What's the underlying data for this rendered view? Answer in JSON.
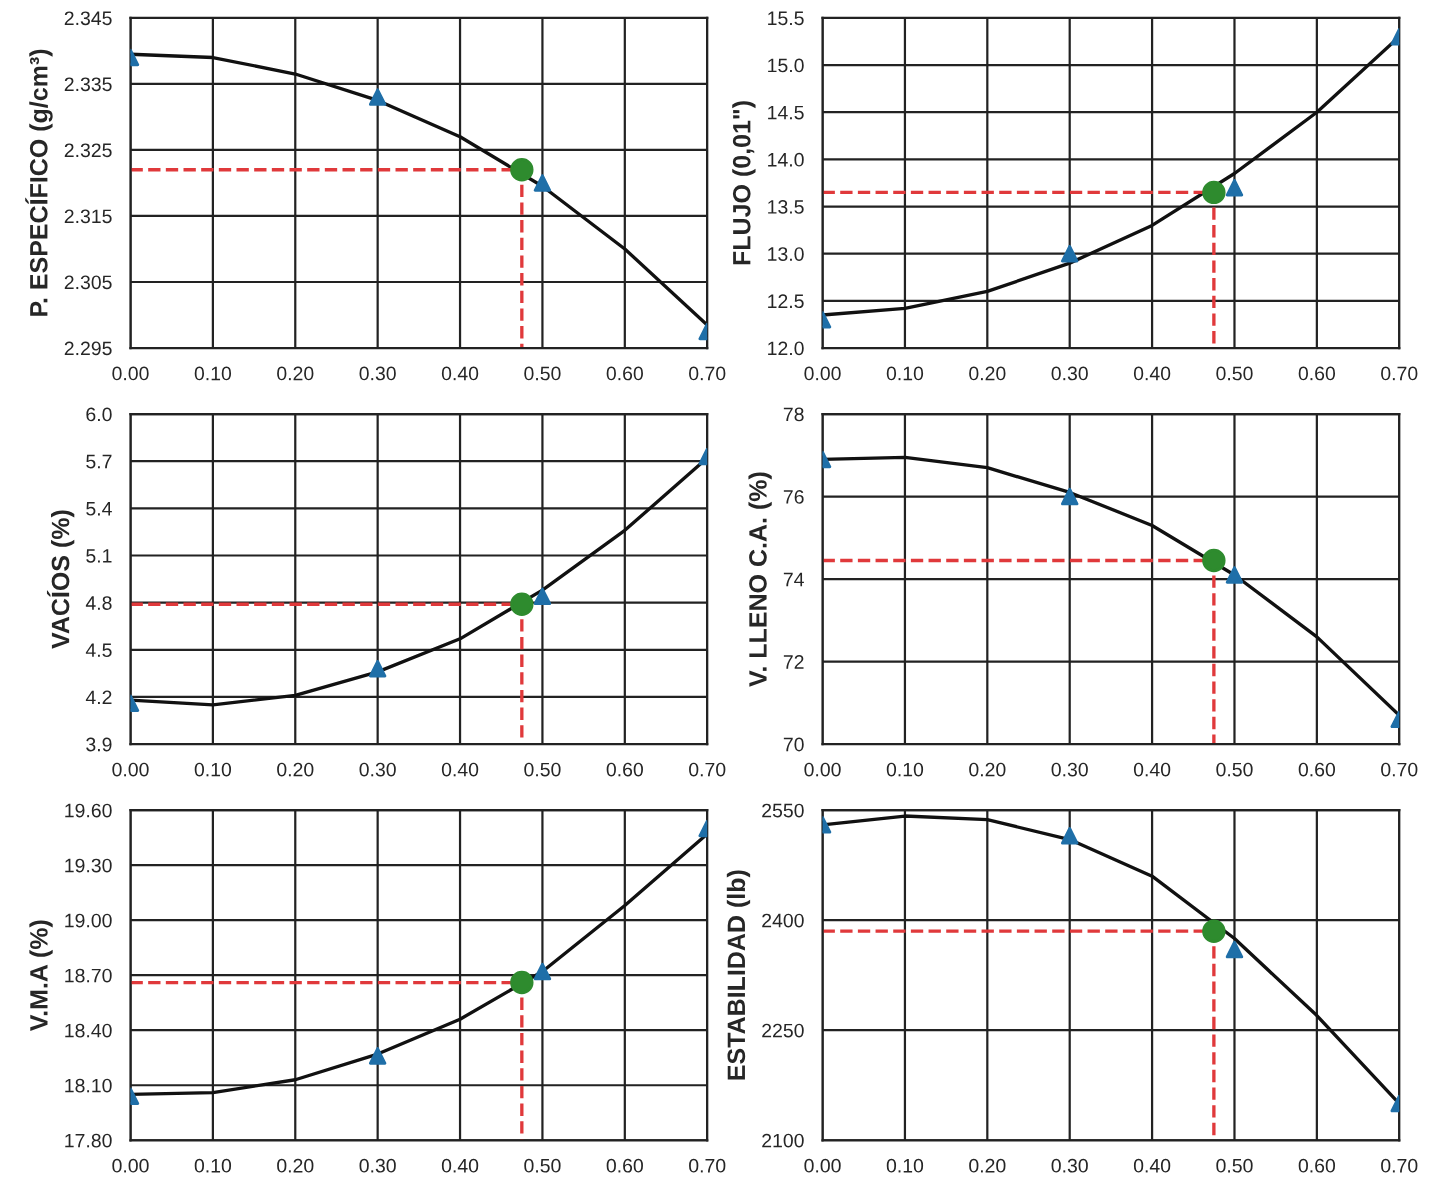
{
  "chart_data": [
    {
      "type": "line",
      "ylabel": "P. ESPECÍFICO (g/cm³)",
      "xlim": [
        0,
        0.7
      ],
      "xticks": [
        {
          "value": 0,
          "label": "0.00"
        },
        {
          "value": 0.1,
          "label": "0.10"
        },
        {
          "value": 0.2,
          "label": "0.20"
        },
        {
          "value": 0.3,
          "label": "0.30"
        },
        {
          "value": 0.4,
          "label": "0.40"
        },
        {
          "value": 0.5,
          "label": "0.50"
        },
        {
          "value": 0.6,
          "label": "0.60"
        },
        {
          "value": 0.7,
          "label": "0.70"
        }
      ],
      "ylim": [
        2.295,
        2.345
      ],
      "yticks": [
        {
          "value": 2.295,
          "label": "2.295"
        },
        {
          "value": 2.305,
          "label": "2.305"
        },
        {
          "value": 2.315,
          "label": "2.315"
        },
        {
          "value": 2.325,
          "label": "2.325"
        },
        {
          "value": 2.335,
          "label": "2.335"
        },
        {
          "value": 2.345,
          "label": "2.345"
        }
      ],
      "grid": true,
      "legend": false,
      "series": [
        {
          "type": "line",
          "color": "#111111",
          "marker": "none",
          "line_style": "solid",
          "x": [
            0,
            0.1,
            0.2,
            0.3,
            0.4,
            0.5,
            0.6,
            0.7
          ],
          "values": [
            2.3395,
            2.339,
            2.3365,
            2.3325,
            2.327,
            2.3195,
            2.31,
            2.2985
          ]
        },
        {
          "type": "scatter",
          "color": "#1f6fa8",
          "marker": "triangle",
          "x": [
            0,
            0.3,
            0.5,
            0.7
          ],
          "values": [
            2.339,
            2.333,
            2.32,
            2.2975
          ]
        },
        {
          "type": "line",
          "color": "#e0393b",
          "marker": "none",
          "line_style": "dashed",
          "x": [
            0,
            0.475,
            0.475
          ],
          "values": [
            2.322,
            2.322,
            2.295
          ]
        },
        {
          "type": "scatter",
          "color": "#2e8b2e",
          "marker": "circle",
          "x": [
            0.475
          ],
          "values": [
            2.322
          ]
        }
      ]
    },
    {
      "type": "line",
      "ylabel": "FLUJO (0,01\")",
      "xlim": [
        0,
        0.7
      ],
      "xticks": [
        {
          "value": 0,
          "label": "0.00"
        },
        {
          "value": 0.1,
          "label": "0.10"
        },
        {
          "value": 0.2,
          "label": "0.20"
        },
        {
          "value": 0.3,
          "label": "0.30"
        },
        {
          "value": 0.4,
          "label": "0.40"
        },
        {
          "value": 0.5,
          "label": "0.50"
        },
        {
          "value": 0.6,
          "label": "0.60"
        },
        {
          "value": 0.7,
          "label": "0.70"
        }
      ],
      "ylim": [
        12.0,
        15.5
      ],
      "yticks": [
        {
          "value": 12.0,
          "label": "12.0"
        },
        {
          "value": 12.5,
          "label": "12.5"
        },
        {
          "value": 13.0,
          "label": "13.0"
        },
        {
          "value": 13.5,
          "label": "13.5"
        },
        {
          "value": 14.0,
          "label": "14.0"
        },
        {
          "value": 14.5,
          "label": "14.5"
        },
        {
          "value": 15.0,
          "label": "15.0"
        },
        {
          "value": 15.5,
          "label": "15.5"
        }
      ],
      "grid": true,
      "legend": false,
      "series": [
        {
          "type": "line",
          "color": "#111111",
          "marker": "none",
          "line_style": "solid",
          "x": [
            0,
            0.1,
            0.2,
            0.3,
            0.4,
            0.5,
            0.6,
            0.7
          ],
          "values": [
            12.35,
            12.42,
            12.6,
            12.9,
            13.3,
            13.85,
            14.5,
            15.3
          ]
        },
        {
          "type": "scatter",
          "color": "#1f6fa8",
          "marker": "triangle",
          "x": [
            0,
            0.3,
            0.5,
            0.7
          ],
          "values": [
            12.3,
            13.0,
            13.7,
            15.3
          ]
        },
        {
          "type": "line",
          "color": "#e0393b",
          "marker": "none",
          "line_style": "dashed",
          "x": [
            0,
            0.475,
            0.475
          ],
          "values": [
            13.65,
            13.65,
            12.0
          ]
        },
        {
          "type": "scatter",
          "color": "#2e8b2e",
          "marker": "circle",
          "x": [
            0.475
          ],
          "values": [
            13.65
          ]
        }
      ]
    },
    {
      "type": "line",
      "ylabel": "VACÍOS (%)",
      "xlim": [
        0,
        0.7
      ],
      "xticks": [
        {
          "value": 0,
          "label": "0.00"
        },
        {
          "value": 0.1,
          "label": "0.10"
        },
        {
          "value": 0.2,
          "label": "0.20"
        },
        {
          "value": 0.3,
          "label": "0.30"
        },
        {
          "value": 0.4,
          "label": "0.40"
        },
        {
          "value": 0.5,
          "label": "0.50"
        },
        {
          "value": 0.6,
          "label": "0.60"
        },
        {
          "value": 0.7,
          "label": "0.70"
        }
      ],
      "ylim": [
        3.9,
        6.0
      ],
      "yticks": [
        3.9,
        4.2,
        4.5,
        4.8,
        5.1,
        5.4,
        5.7,
        {
          "value": 6.0,
          "label": "6.0"
        }
      ],
      "grid": true,
      "legend": false,
      "series": [
        {
          "type": "line",
          "color": "#111111",
          "marker": "none",
          "line_style": "solid",
          "x": [
            0,
            0.1,
            0.2,
            0.3,
            0.4,
            0.5,
            0.6,
            0.7
          ],
          "values": [
            4.18,
            4.15,
            4.21,
            4.36,
            4.57,
            4.88,
            5.26,
            5.72
          ]
        },
        {
          "type": "scatter",
          "color": "#1f6fa8",
          "marker": "triangle",
          "x": [
            0,
            0.3,
            0.5,
            0.7
          ],
          "values": [
            4.16,
            4.38,
            4.84,
            5.73
          ]
        },
        {
          "type": "line",
          "color": "#e0393b",
          "marker": "none",
          "line_style": "dashed",
          "x": [
            0,
            0.475,
            0.475
          ],
          "values": [
            4.79,
            4.79,
            3.9
          ]
        },
        {
          "type": "scatter",
          "color": "#2e8b2e",
          "marker": "circle",
          "x": [
            0.475
          ],
          "values": [
            4.79
          ]
        }
      ]
    },
    {
      "type": "line",
      "ylabel": "V. LLENO C.A. (%)",
      "xlim": [
        0,
        0.7
      ],
      "xticks": [
        {
          "value": 0,
          "label": "0.00"
        },
        {
          "value": 0.1,
          "label": "0.10"
        },
        {
          "value": 0.2,
          "label": "0.20"
        },
        {
          "value": 0.3,
          "label": "0.30"
        },
        {
          "value": 0.4,
          "label": "0.40"
        },
        {
          "value": 0.5,
          "label": "0.50"
        },
        {
          "value": 0.6,
          "label": "0.60"
        },
        {
          "value": 0.7,
          "label": "0.70"
        }
      ],
      "ylim": [
        70,
        78
      ],
      "yticks": [
        70,
        72,
        74,
        76,
        78
      ],
      "grid": true,
      "legend": false,
      "series": [
        {
          "type": "line",
          "color": "#111111",
          "marker": "none",
          "line_style": "solid",
          "x": [
            0,
            0.1,
            0.2,
            0.3,
            0.4,
            0.5,
            0.6,
            0.7
          ],
          "values": [
            76.9,
            76.95,
            76.7,
            76.1,
            75.3,
            74.1,
            72.6,
            70.7
          ]
        },
        {
          "type": "scatter",
          "color": "#1f6fa8",
          "marker": "triangle",
          "x": [
            0,
            0.3,
            0.5,
            0.7
          ],
          "values": [
            76.9,
            76.0,
            74.1,
            70.6
          ]
        },
        {
          "type": "line",
          "color": "#e0393b",
          "marker": "none",
          "line_style": "dashed",
          "x": [
            0,
            0.475,
            0.475
          ],
          "values": [
            74.45,
            74.45,
            70
          ]
        },
        {
          "type": "scatter",
          "color": "#2e8b2e",
          "marker": "circle",
          "x": [
            0.475
          ],
          "values": [
            74.45
          ]
        }
      ]
    },
    {
      "type": "line",
      "ylabel": "V.M.A (%)",
      "xlim": [
        0,
        0.7
      ],
      "xticks": [
        {
          "value": 0,
          "label": "0.00"
        },
        {
          "value": 0.1,
          "label": "0.10"
        },
        {
          "value": 0.2,
          "label": "0.20"
        },
        {
          "value": 0.3,
          "label": "0.30"
        },
        {
          "value": 0.4,
          "label": "0.40"
        },
        {
          "value": 0.5,
          "label": "0.50"
        },
        {
          "value": 0.6,
          "label": "0.60"
        },
        {
          "value": 0.7,
          "label": "0.70"
        }
      ],
      "ylim": [
        17.8,
        19.6
      ],
      "yticks": [
        {
          "value": 17.8,
          "label": "17.80"
        },
        {
          "value": 18.1,
          "label": "18.10"
        },
        {
          "value": 18.4,
          "label": "18.40"
        },
        {
          "value": 18.7,
          "label": "18.70"
        },
        {
          "value": 19.0,
          "label": "19.00"
        },
        {
          "value": 19.3,
          "label": "19.30"
        },
        {
          "value": 19.6,
          "label": "19.60"
        }
      ],
      "grid": true,
      "legend": false,
      "series": [
        {
          "type": "line",
          "color": "#111111",
          "marker": "none",
          "line_style": "solid",
          "x": [
            0,
            0.1,
            0.2,
            0.3,
            0.4,
            0.5,
            0.6,
            0.7
          ],
          "values": [
            18.05,
            18.06,
            18.13,
            18.27,
            18.46,
            18.72,
            19.08,
            19.47
          ]
        },
        {
          "type": "scatter",
          "color": "#1f6fa8",
          "marker": "triangle",
          "x": [
            0,
            0.3,
            0.5,
            0.7
          ],
          "values": [
            18.04,
            18.26,
            18.72,
            19.5
          ]
        },
        {
          "type": "line",
          "color": "#e0393b",
          "marker": "none",
          "line_style": "dashed",
          "x": [
            0,
            0.475,
            0.475
          ],
          "values": [
            18.66,
            18.66,
            17.8
          ]
        },
        {
          "type": "scatter",
          "color": "#2e8b2e",
          "marker": "circle",
          "x": [
            0.475
          ],
          "values": [
            18.66
          ]
        }
      ]
    },
    {
      "type": "line",
      "ylabel": "ESTABILIDAD (lb)",
      "xlim": [
        0,
        0.7
      ],
      "xticks": [
        {
          "value": 0,
          "label": "0.00"
        },
        {
          "value": 0.1,
          "label": "0.10"
        },
        {
          "value": 0.2,
          "label": "0.20"
        },
        {
          "value": 0.3,
          "label": "0.30"
        },
        {
          "value": 0.4,
          "label": "0.40"
        },
        {
          "value": 0.5,
          "label": "0.50"
        },
        {
          "value": 0.6,
          "label": "0.60"
        },
        {
          "value": 0.7,
          "label": "0.70"
        }
      ],
      "ylim": [
        2100,
        2550
      ],
      "yticks": [
        2100,
        2250,
        2400,
        2550
      ],
      "grid": true,
      "legend": false,
      "series": [
        {
          "type": "line",
          "color": "#111111",
          "marker": "none",
          "line_style": "solid",
          "x": [
            0,
            0.1,
            0.2,
            0.3,
            0.4,
            0.5,
            0.6,
            0.7
          ],
          "values": [
            2530,
            2542,
            2537,
            2510,
            2460,
            2375,
            2270,
            2150
          ]
        },
        {
          "type": "scatter",
          "color": "#1f6fa8",
          "marker": "triangle",
          "x": [
            0,
            0.3,
            0.5,
            0.7
          ],
          "values": [
            2530,
            2515,
            2360,
            2150
          ]
        },
        {
          "type": "line",
          "color": "#e0393b",
          "marker": "none",
          "line_style": "dashed",
          "x": [
            0,
            0.475,
            0.475
          ],
          "values": [
            2385,
            2385,
            2100
          ]
        },
        {
          "type": "scatter",
          "color": "#2e8b2e",
          "marker": "circle",
          "x": [
            0.475
          ],
          "values": [
            2385
          ]
        }
      ]
    }
  ]
}
